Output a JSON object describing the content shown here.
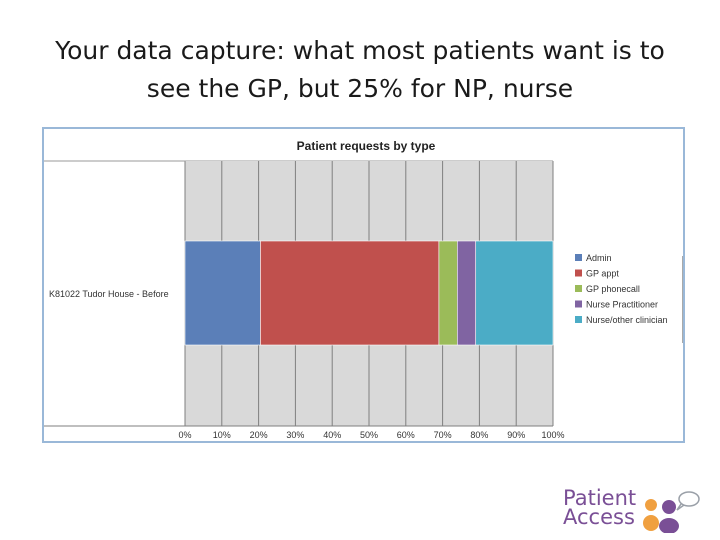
{
  "slide": {
    "title_line1": "Your data capture: what most patients want is to",
    "title_line2": "see the GP, but 25% for NP, nurse"
  },
  "logo": {
    "line1": "Patient",
    "line2": "Access",
    "colors": {
      "text": "#7a4f96",
      "orange": "#f0a040",
      "purple": "#7a4f96"
    }
  },
  "chart_data": {
    "type": "bar",
    "orientation": "horizontal",
    "stacked": "percent",
    "title": "Patient requests by type",
    "categories": [
      "K81022 Tudor House - Before"
    ],
    "series": [
      {
        "name": "Admin",
        "values": [
          20.5
        ],
        "color": "#5b7fb8"
      },
      {
        "name": "GP appt",
        "values": [
          48.5
        ],
        "color": "#c0504d"
      },
      {
        "name": "GP phonecall",
        "values": [
          5
        ],
        "color": "#9bbb59"
      },
      {
        "name": "Nurse Practitioner",
        "values": [
          5
        ],
        "color": "#8064a2"
      },
      {
        "name": "Nurse/other clinician",
        "values": [
          21
        ],
        "color": "#4bacc6"
      }
    ],
    "xlim": [
      0,
      100
    ],
    "xticks": [
      "0%",
      "10%",
      "20%",
      "30%",
      "40%",
      "50%",
      "60%",
      "70%",
      "80%",
      "90%",
      "100%"
    ],
    "grid": true,
    "legend": "right",
    "plot_background": "#d9d9d9"
  }
}
